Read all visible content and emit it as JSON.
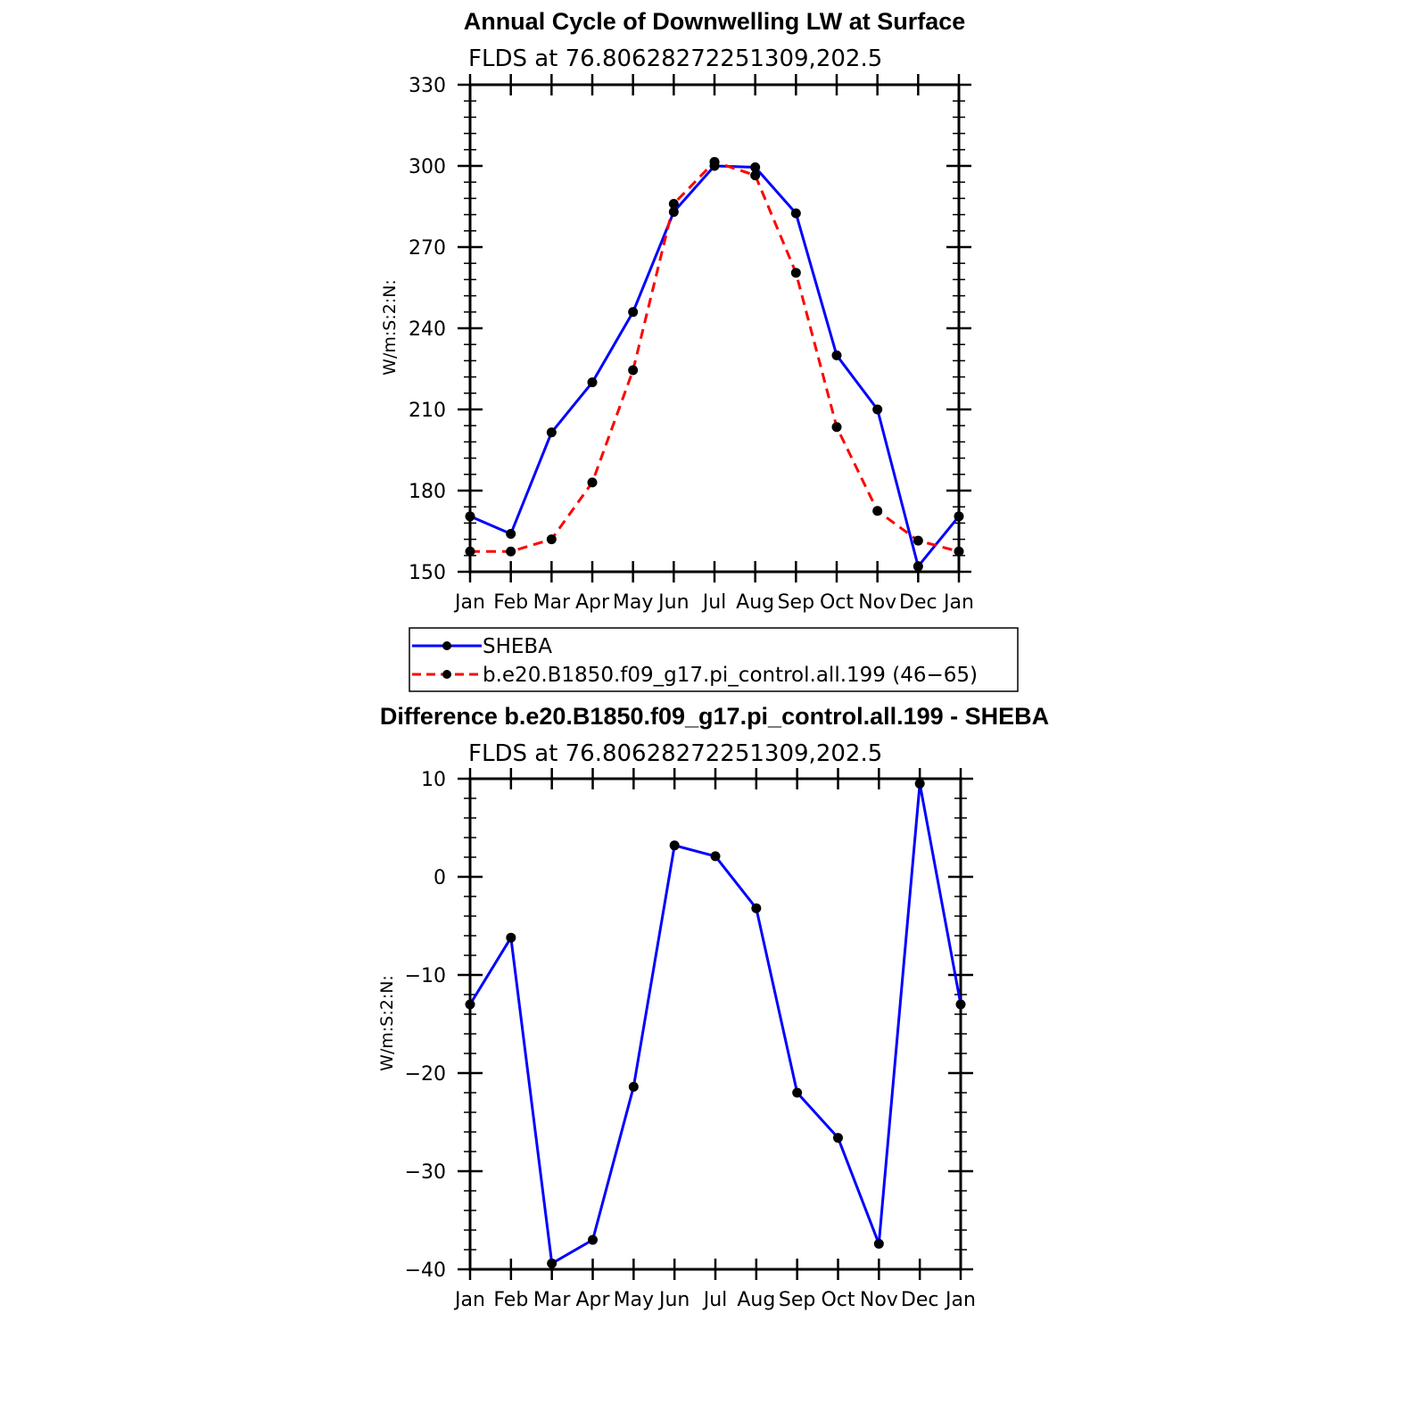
{
  "chart_data": [
    {
      "type": "line",
      "title": "Annual Cycle of Downwelling LW at Surface",
      "subtitle": "FLDS at 76.80628272251309,202.5",
      "ylabel": "W/m:S:2:N:",
      "xlabel": "",
      "categories": [
        "Jan",
        "Feb",
        "Mar",
        "Apr",
        "May",
        "Jun",
        "Jul",
        "Aug",
        "Sep",
        "Oct",
        "Nov",
        "Dec",
        "Jan"
      ],
      "ylim": [
        150,
        330
      ],
      "yticks": [
        150,
        180,
        210,
        240,
        270,
        300,
        330
      ],
      "ytick_labels": [
        "150",
        "180",
        "210",
        "240",
        "270",
        "300",
        "330"
      ],
      "grid": false,
      "legend_position": "below",
      "series": [
        {
          "name": "SHEBA",
          "color": "#0000ff",
          "dash": "solid",
          "values": [
            170.5,
            164,
            201.5,
            220,
            246,
            283,
            300,
            299.5,
            282.5,
            230,
            210,
            152,
            170.5
          ]
        },
        {
          "name": "b.e20.B1850.f09_g17.pi_control.all.199 (46−65)",
          "color": "#ff0000",
          "dash": "dashed",
          "values": [
            157.5,
            157.5,
            162,
            183,
            224.5,
            286,
            301.5,
            296.5,
            260.5,
            203.5,
            172.5,
            161.5,
            157.5
          ]
        }
      ]
    },
    {
      "type": "line",
      "title": "Difference b.e20.B1850.f09_g17.pi_control.all.199 - SHEBA",
      "subtitle": "FLDS at 76.80628272251309,202.5",
      "ylabel": "W/m:S:2:N:",
      "xlabel": "",
      "categories": [
        "Jan",
        "Feb",
        "Mar",
        "Apr",
        "May",
        "Jun",
        "Jul",
        "Aug",
        "Sep",
        "Oct",
        "Nov",
        "Dec",
        "Jan"
      ],
      "ylim": [
        -40,
        10
      ],
      "yticks": [
        -40,
        -30,
        -20,
        -10,
        0,
        10
      ],
      "ytick_labels": [
        "−40",
        "−30",
        "−20",
        "−10",
        "0",
        "10"
      ],
      "grid": false,
      "series": [
        {
          "color": "#0000ff",
          "dash": "solid",
          "values": [
            -13,
            -6.2,
            -39.4,
            -37,
            -21.4,
            3.2,
            2.1,
            -3.2,
            -22,
            -26.6,
            -37.4,
            9.5,
            -13
          ]
        }
      ]
    }
  ]
}
